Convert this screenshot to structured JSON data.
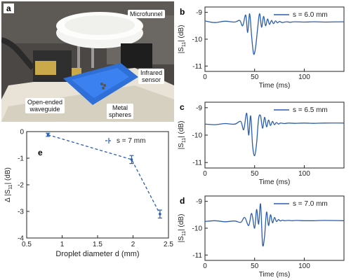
{
  "photo": {
    "panel_label": "a",
    "callouts": {
      "microfunnel": "Microfunnel",
      "infrared_line1": "Infrared",
      "infrared_line2": "sensor",
      "waveguide_line1": "Open-ended",
      "waveguide_line2": "waveguide",
      "spheres_line1": "Metal",
      "spheres_line2": "spheres"
    }
  },
  "colors": {
    "line": "#2a5db0",
    "marker": "#2a5db0",
    "axis": "#222222"
  },
  "chart_data": [
    {
      "panel": "b",
      "type": "line",
      "legend": "s = 6.0 mm",
      "xlabel": "Time (ms)",
      "ylabel": "|S11| (dB)",
      "xlim": [
        0,
        140
      ],
      "ylim": [
        -11.2,
        -8.8
      ],
      "xticks": [
        0,
        50,
        100
      ],
      "yticks": [
        -9,
        -10,
        -11
      ],
      "baseline": -9.35,
      "center_ms": 50,
      "x": [
        0,
        10,
        20,
        30,
        35,
        38,
        41,
        43,
        45,
        47,
        49,
        51,
        53,
        55,
        57,
        59,
        61,
        63,
        65,
        67,
        69,
        71,
        73,
        75,
        78,
        82,
        86,
        90,
        100,
        110,
        120,
        140
      ],
      "values": [
        -9.32,
        -9.38,
        -9.33,
        -9.36,
        -9.3,
        -9.5,
        -9.1,
        -9.75,
        -9.05,
        -9.9,
        -10.55,
        -10.3,
        -9.6,
        -9.05,
        -9.55,
        -9.15,
        -9.5,
        -9.25,
        -9.45,
        -9.3,
        -9.42,
        -9.32,
        -9.39,
        -9.34,
        -9.38,
        -9.35,
        -9.37,
        -9.35,
        -9.36,
        -9.35,
        -9.36,
        -9.35
      ]
    },
    {
      "panel": "c",
      "type": "line",
      "legend": "s = 6.5 mm",
      "xlabel": "Time (ms)",
      "ylabel": "|S11| (dB)",
      "xlim": [
        0,
        140
      ],
      "ylim": [
        -11.2,
        -8.8
      ],
      "xticks": [
        0,
        50,
        100
      ],
      "yticks": [
        -9,
        -10,
        -11
      ],
      "x": [
        0,
        10,
        20,
        30,
        36,
        39,
        42,
        44,
        46,
        48,
        50,
        52,
        54,
        56,
        58,
        60,
        62,
        64,
        66,
        68,
        70,
        72,
        74,
        76,
        80,
        84,
        90,
        100,
        110,
        120,
        140
      ],
      "values": [
        -9.6,
        -9.62,
        -9.58,
        -9.6,
        -9.5,
        -9.8,
        -9.2,
        -10.0,
        -9.3,
        -10.4,
        -10.75,
        -10.3,
        -9.4,
        -9.3,
        -9.75,
        -9.35,
        -9.7,
        -9.45,
        -9.65,
        -9.5,
        -9.62,
        -9.54,
        -9.6,
        -9.56,
        -9.58,
        -9.56,
        -9.57,
        -9.56,
        -9.57,
        -9.56,
        -9.56
      ]
    },
    {
      "panel": "d",
      "type": "line",
      "legend": "s = 7.0 mm",
      "xlabel": "Time (ms)",
      "ylabel": "|S11| (dB)",
      "xlim": [
        0,
        140
      ],
      "ylim": [
        -11.2,
        -8.8
      ],
      "xticks": [
        0,
        50,
        100
      ],
      "yticks": [
        -9,
        -10,
        -11
      ],
      "x": [
        0,
        10,
        20,
        30,
        36,
        40,
        44,
        47,
        50,
        52,
        54,
        56,
        58,
        60,
        62,
        64,
        66,
        68,
        70,
        72,
        74,
        76,
        78,
        80,
        84,
        88,
        92,
        100,
        110,
        120,
        140
      ],
      "values": [
        -9.75,
        -9.72,
        -9.76,
        -9.73,
        -9.78,
        -9.6,
        -9.9,
        -9.45,
        -10.0,
        -9.3,
        -9.85,
        -9.1,
        -10.6,
        -10.3,
        -9.4,
        -9.9,
        -9.5,
        -9.8,
        -9.6,
        -9.75,
        -9.68,
        -9.73,
        -9.7,
        -9.72,
        -9.71,
        -9.72,
        -9.71,
        -9.72,
        -9.72,
        -9.71,
        -9.72
      ]
    },
    {
      "panel": "e",
      "type": "scatter",
      "legend": "s = 7 mm",
      "xlabel": "Droplet diameter d (mm)",
      "ylabel": "Δ |S11| (dB)",
      "xlim": [
        0.5,
        2.5
      ],
      "ylim": [
        -4,
        0
      ],
      "xticks": [
        0.5,
        1,
        1.5,
        2,
        2.5
      ],
      "yticks": [
        0,
        -1,
        -2,
        -3,
        -4
      ],
      "x": [
        0.8,
        1.98,
        2.38
      ],
      "values": [
        -0.12,
        -1.05,
        -3.1
      ],
      "errors": [
        0.06,
        0.15,
        0.15
      ]
    }
  ]
}
